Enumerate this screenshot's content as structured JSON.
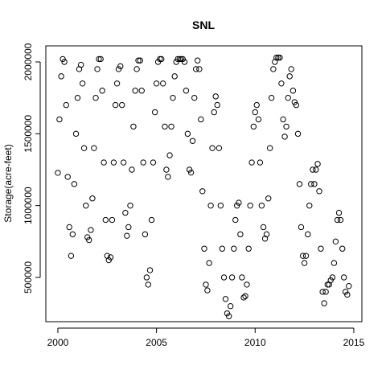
{
  "chart_data": {
    "type": "scatter",
    "title": "SNL",
    "y_label": "Storage(acre-feet)",
    "color": "#000000",
    "xlim": [
      1999.39,
      2015.41
    ],
    "xticks": [
      2000,
      2005,
      2010,
      2015
    ],
    "ylim": [
      192000,
      2112000
    ],
    "yticks": [
      500000,
      1000000,
      1500000,
      2000000
    ],
    "x": [
      2000.0,
      2000.08,
      2000.17,
      2000.25,
      2000.33,
      2000.42,
      2000.5,
      2000.58,
      2000.67,
      2000.75,
      2000.83,
      2000.92,
      2001.0,
      2001.08,
      2001.17,
      2001.25,
      2001.33,
      2001.42,
      2001.5,
      2001.58,
      2001.67,
      2001.75,
      2001.83,
      2001.92,
      2002.0,
      2002.08,
      2002.17,
      2002.25,
      2002.33,
      2002.42,
      2002.5,
      2002.58,
      2002.67,
      2002.75,
      2002.83,
      2002.92,
      2003.0,
      2003.08,
      2003.17,
      2003.25,
      2003.33,
      2003.42,
      2003.5,
      2003.58,
      2003.67,
      2003.75,
      2003.83,
      2003.92,
      2004.0,
      2004.08,
      2004.17,
      2004.25,
      2004.33,
      2004.42,
      2004.5,
      2004.58,
      2004.67,
      2004.75,
      2004.83,
      2004.92,
      2005.0,
      2005.08,
      2005.17,
      2005.25,
      2005.33,
      2005.42,
      2005.5,
      2005.58,
      2005.67,
      2005.75,
      2005.83,
      2005.92,
      2006.0,
      2006.08,
      2006.17,
      2006.25,
      2006.33,
      2006.42,
      2006.5,
      2006.58,
      2006.67,
      2006.75,
      2006.83,
      2006.92,
      2007.0,
      2007.08,
      2007.17,
      2007.25,
      2007.33,
      2007.42,
      2007.5,
      2007.58,
      2007.67,
      2007.75,
      2007.83,
      2007.92,
      2008.0,
      2008.08,
      2008.17,
      2008.25,
      2008.33,
      2008.42,
      2008.5,
      2008.58,
      2008.67,
      2008.75,
      2008.83,
      2008.92,
      2009.0,
      2009.08,
      2009.17,
      2009.25,
      2009.33,
      2009.42,
      2009.5,
      2009.58,
      2009.67,
      2009.75,
      2009.83,
      2009.92,
      2010.0,
      2010.08,
      2010.17,
      2010.25,
      2010.33,
      2010.42,
      2010.5,
      2010.58,
      2010.67,
      2010.75,
      2010.83,
      2010.92,
      2011.0,
      2011.08,
      2011.17,
      2011.25,
      2011.33,
      2011.42,
      2011.5,
      2011.58,
      2011.67,
      2011.75,
      2011.83,
      2011.92,
      2012.0,
      2012.08,
      2012.17,
      2012.25,
      2012.33,
      2012.42,
      2012.5,
      2012.58,
      2012.67,
      2012.75,
      2012.83,
      2012.92,
      2013.0,
      2013.08,
      2013.17,
      2013.25,
      2013.33,
      2013.42,
      2013.5,
      2013.58,
      2013.67,
      2013.75,
      2013.83,
      2013.92,
      2014.0,
      2014.08,
      2014.17,
      2014.25,
      2014.33,
      2014.42,
      2014.5,
      2014.58,
      2014.67,
      2014.75
    ],
    "values": [
      1228000,
      1600000,
      1900000,
      2020000,
      2000000,
      1700000,
      1200000,
      850000,
      650000,
      800000,
      1150000,
      1500000,
      1750000,
      1950000,
      1980000,
      1850000,
      1400000,
      1000000,
      780000,
      760000,
      830000,
      1050000,
      1400000,
      1750000,
      1950000,
      2020000,
      2020000,
      1800000,
      1300000,
      900000,
      650000,
      620000,
      640000,
      900000,
      1300000,
      1700000,
      1850000,
      1950000,
      1970000,
      1700000,
      1300000,
      950000,
      790000,
      850000,
      1000000,
      1250000,
      1550000,
      1800000,
      1950000,
      2010000,
      2010000,
      1800000,
      1300000,
      800000,
      500000,
      450000,
      550000,
      900000,
      1300000,
      1650000,
      1850000,
      2000000,
      2020000,
      2020000,
      1850000,
      1550000,
      1250000,
      1200000,
      1350000,
      1550000,
      1750000,
      1900000,
      2000000,
      2020000,
      2020000,
      2020000,
      2020000,
      2000000,
      1800000,
      1500000,
      1250000,
      1230000,
      1450000,
      1750000,
      1950000,
      2010000,
      1950000,
      1600000,
      1100000,
      700000,
      450000,
      410000,
      600000,
      1000000,
      1400000,
      1650000,
      1760000,
      1700000,
      1400000,
      1000000,
      700000,
      500000,
      350000,
      250000,
      230000,
      300000,
      500000,
      700000,
      900000,
      1000000,
      1020000,
      800000,
      500000,
      360000,
      370000,
      450000,
      700000,
      1000000,
      1300000,
      1550000,
      1650000,
      1700000,
      1600000,
      1300000,
      1000000,
      850000,
      770000,
      800000,
      1050000,
      1400000,
      1750000,
      1950000,
      2000000,
      2030000,
      2030000,
      2030000,
      1850000,
      1600000,
      1480000,
      1550000,
      1750000,
      1900000,
      1950000,
      1800000,
      1720000,
      1700000,
      1500000,
      1150000,
      850000,
      650000,
      600000,
      650000,
      800000,
      1000000,
      1150000,
      1250000,
      1150000,
      1250000,
      1290000,
      1100000,
      700000,
      400000,
      320000,
      400000,
      450000,
      450000,
      480000,
      500000,
      600000,
      750000,
      900000,
      950000,
      900000,
      700000,
      500000,
      400000,
      380000,
      440000
    ]
  }
}
